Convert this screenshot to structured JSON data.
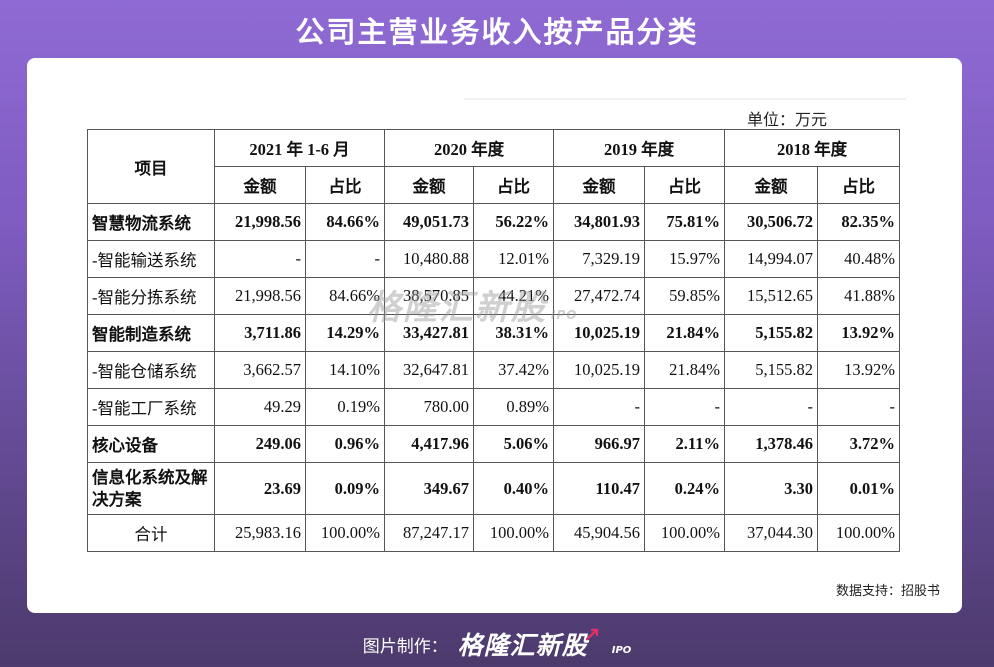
{
  "page_title": "公司主营业务收入按产品分类",
  "unit": "单位：万元",
  "source": "数据支持：招股书",
  "watermark": {
    "brand": "格隆汇新股",
    "ipo": "IPO"
  },
  "credit": {
    "label": "图片制作：",
    "brand": "格隆汇新股",
    "ipo": "IPO"
  },
  "colors": {
    "background_top": "#8f6ad4",
    "background_bottom": "#4c3a6c",
    "card": "#ffffff",
    "border": "#555555"
  },
  "chart_data": {
    "type": "table",
    "title": "公司主营业务收入按产品分类",
    "row_header": "项目",
    "periods": [
      "2021 年 1-6 月",
      "2020 年度",
      "2019 年度",
      "2018 年度"
    ],
    "subheaders": [
      "金额",
      "占比"
    ],
    "rows": [
      {
        "name": "智慧物流系统",
        "bold": true,
        "cells": [
          "21,998.56",
          "84.66%",
          "49,051.73",
          "56.22%",
          "34,801.93",
          "75.81%",
          "30,506.72",
          "82.35%"
        ]
      },
      {
        "name": "-智能输送系统",
        "bold": false,
        "cells": [
          "-",
          "-",
          "10,480.88",
          "12.01%",
          "7,329.19",
          "15.97%",
          "14,994.07",
          "40.48%"
        ]
      },
      {
        "name": "-智能分拣系统",
        "bold": false,
        "cells": [
          "21,998.56",
          "84.66%",
          "38,570.85",
          "44.21%",
          "27,472.74",
          "59.85%",
          "15,512.65",
          "41.88%"
        ]
      },
      {
        "name": "智能制造系统",
        "bold": true,
        "cells": [
          "3,711.86",
          "14.29%",
          "33,427.81",
          "38.31%",
          "10,025.19",
          "21.84%",
          "5,155.82",
          "13.92%"
        ]
      },
      {
        "name": "-智能仓储系统",
        "bold": false,
        "cells": [
          "3,662.57",
          "14.10%",
          "32,647.81",
          "37.42%",
          "10,025.19",
          "21.84%",
          "5,155.82",
          "13.92%"
        ]
      },
      {
        "name": "-智能工厂系统",
        "bold": false,
        "cells": [
          "49.29",
          "0.19%",
          "780.00",
          "0.89%",
          "-",
          "-",
          "-",
          "-"
        ]
      },
      {
        "name": "核心设备",
        "bold": true,
        "cells": [
          "249.06",
          "0.96%",
          "4,417.96",
          "5.06%",
          "966.97",
          "2.11%",
          "1,378.46",
          "3.72%"
        ]
      },
      {
        "name": "信息化系统及解决方案",
        "bold": true,
        "tall": true,
        "cells": [
          "23.69",
          "0.09%",
          "349.67",
          "0.40%",
          "110.47",
          "0.24%",
          "3.30",
          "0.01%"
        ]
      },
      {
        "name": "合计",
        "bold": false,
        "total": true,
        "cells": [
          "25,983.16",
          "100.00%",
          "87,247.17",
          "100.00%",
          "45,904.56",
          "100.00%",
          "37,044.30",
          "100.00%"
        ]
      }
    ]
  }
}
